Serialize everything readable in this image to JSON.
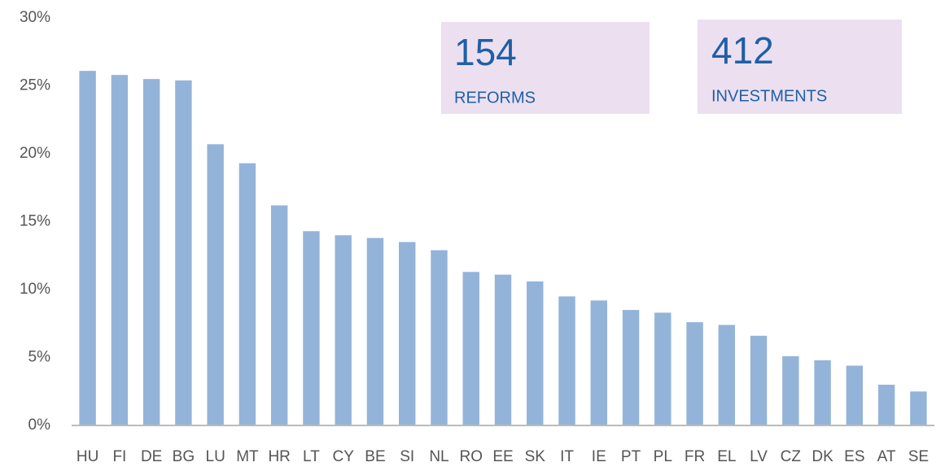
{
  "chart_data": {
    "type": "bar",
    "categories": [
      "HU",
      "FI",
      "DE",
      "BG",
      "LU",
      "MT",
      "HR",
      "LT",
      "CY",
      "BE",
      "SI",
      "NL",
      "RO",
      "EE",
      "SK",
      "IT",
      "IE",
      "PT",
      "PL",
      "FR",
      "EL",
      "LV",
      "CZ",
      "DK",
      "ES",
      "AT",
      "SE"
    ],
    "values": [
      26.1,
      25.8,
      25.5,
      25.4,
      20.7,
      19.3,
      16.2,
      14.3,
      14.0,
      13.8,
      13.5,
      12.9,
      11.3,
      11.1,
      10.6,
      9.5,
      9.2,
      8.5,
      8.3,
      7.6,
      7.4,
      6.6,
      5.1,
      4.8,
      4.4,
      3.0,
      2.5
    ],
    "color": "#94b3d9",
    "ylim": [
      0,
      30
    ],
    "yticks": [
      {
        "value": 0,
        "label": "0%"
      },
      {
        "value": 5,
        "label": "5%"
      },
      {
        "value": 10,
        "label": "10%"
      },
      {
        "value": 15,
        "label": "15%"
      },
      {
        "value": 20,
        "label": "20%"
      },
      {
        "value": 25,
        "label": "25%"
      },
      {
        "value": 30,
        "label": "30%"
      }
    ],
    "grid": false,
    "annotations": [
      {
        "number": 154,
        "text": "REFORMS"
      },
      {
        "number": 412,
        "text": "INVESTMENTS"
      }
    ]
  }
}
